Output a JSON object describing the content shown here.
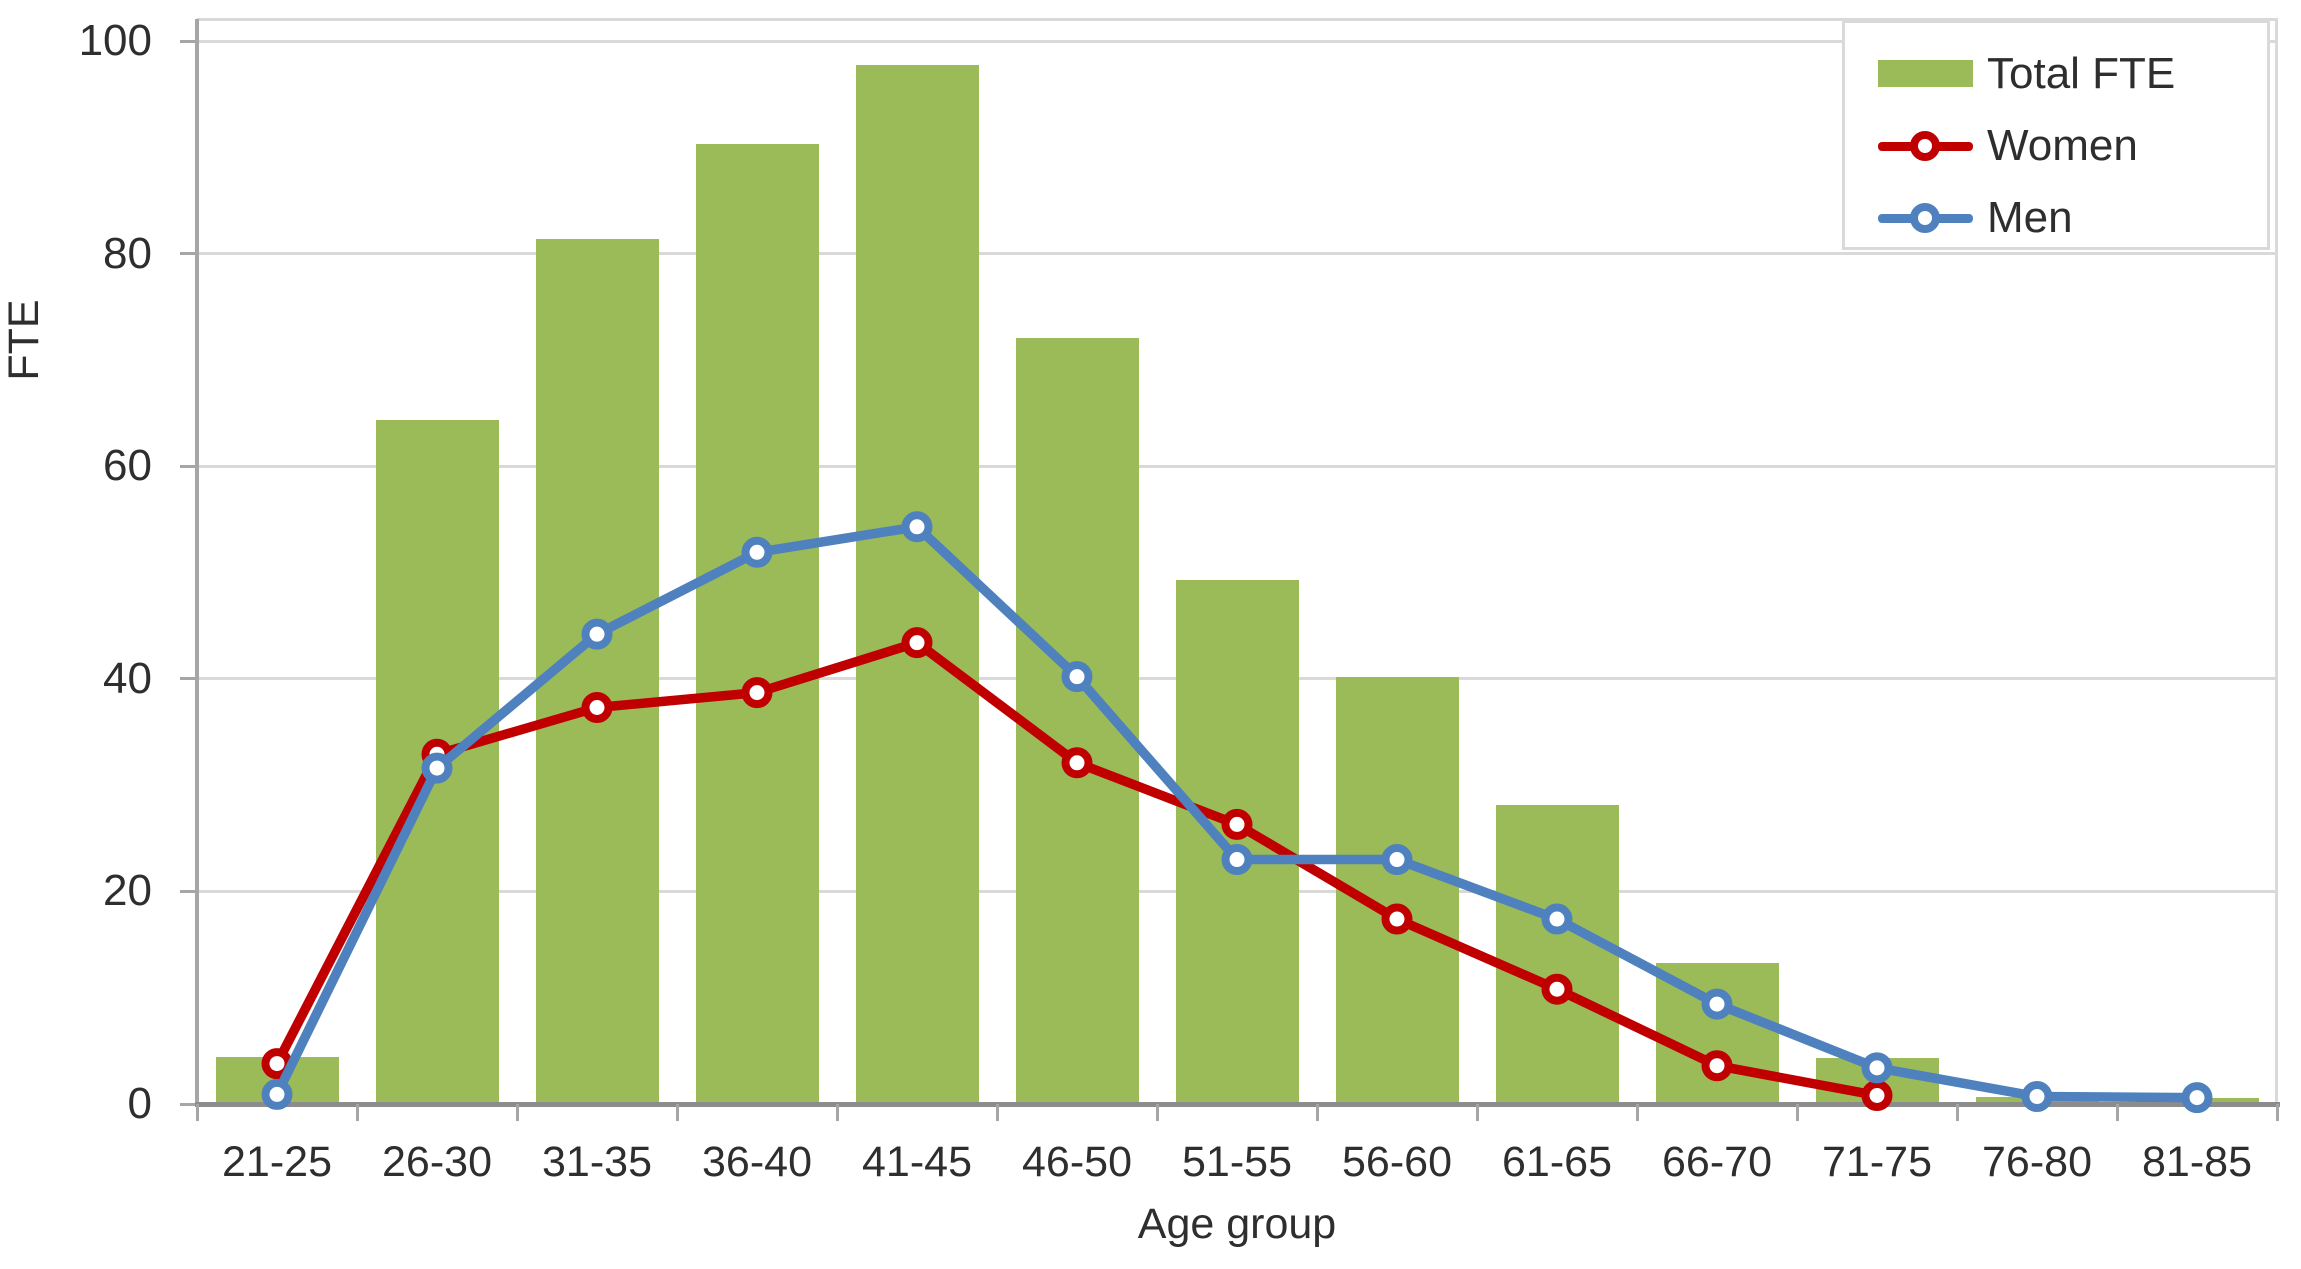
{
  "chart_data": {
    "type": "combo-bar-line",
    "categories": [
      "21-25",
      "26-30",
      "31-35",
      "36-40",
      "41-45",
      "46-50",
      "51-55",
      "56-60",
      "61-65",
      "66-70",
      "71-75",
      "76-80",
      "81-85"
    ],
    "series": [
      {
        "name": "Total FTE",
        "type": "bar",
        "color": "#9BBB59",
        "values": [
          4.4,
          64.3,
          81.4,
          90.3,
          97.7,
          72.1,
          49.3,
          40.2,
          28.1,
          13.3,
          4.3,
          0.7,
          0.6
        ]
      },
      {
        "name": "Women",
        "type": "line",
        "color": "#C00000",
        "marker": "circle",
        "values": [
          3.8,
          32.9,
          37.3,
          38.7,
          43.4,
          32.1,
          26.3,
          17.4,
          10.8,
          3.6,
          0.8
        ]
      },
      {
        "name": "Men",
        "type": "line",
        "color": "#4E81BD",
        "marker": "circle",
        "values": [
          0.9,
          31.6,
          44.2,
          51.9,
          54.3,
          40.2,
          23.0,
          23.0,
          17.4,
          9.4,
          3.4,
          0.7,
          0.6
        ]
      }
    ],
    "xlabel": "Age group",
    "ylabel": "FTE",
    "ylim": [
      0,
      100
    ],
    "yticks": [
      0,
      20,
      40,
      60,
      80,
      100
    ],
    "grid": "horizontal",
    "legend_position": "top-right",
    "colors": {
      "gridline": "#D9D9D9",
      "axis_line": "#A6A6A6",
      "baseline": "#8C8C8C",
      "text": "#2E2E2E",
      "background": "#FFFFFF"
    }
  }
}
